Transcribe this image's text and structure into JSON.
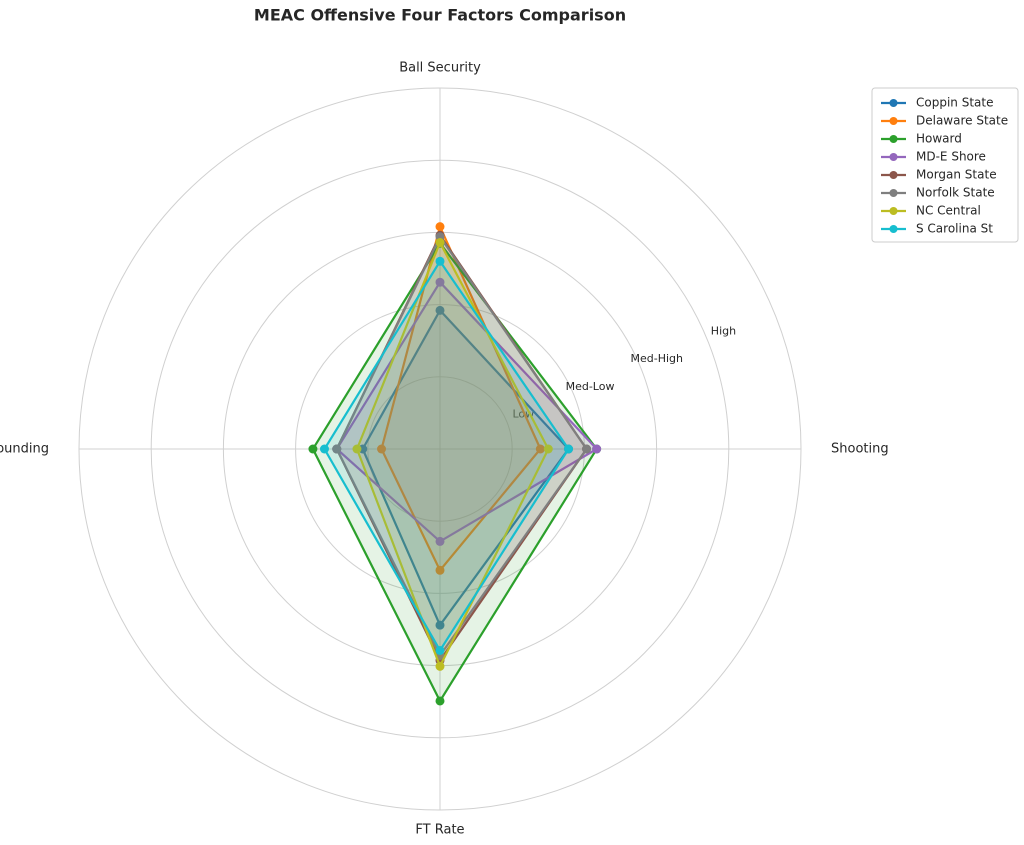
{
  "chart_data": {
    "type": "radar",
    "title": "MEAC Offensive Four Factors Comparison",
    "categories": [
      "Shooting",
      "Ball Security",
      "Off Rebounding",
      "FT Rate"
    ],
    "ylim": [
      0,
      5
    ],
    "yticks": [
      {
        "value": 1,
        "label": "Low"
      },
      {
        "value": 2,
        "label": "Med-Low"
      },
      {
        "value": 3,
        "label": "Med-High"
      },
      {
        "value": 4,
        "label": "High"
      }
    ],
    "grid": true,
    "legend": "upper right",
    "series": [
      {
        "name": "Coppin State",
        "color": "#1f77b4",
        "values": [
          1.78,
          1.92,
          1.07,
          2.44
        ]
      },
      {
        "name": "Delaware State",
        "color": "#ff7f0e",
        "values": [
          1.39,
          3.08,
          0.81,
          1.68
        ]
      },
      {
        "name": "Howard",
        "color": "#2ca02c",
        "values": [
          2.17,
          2.85,
          1.76,
          3.49
        ]
      },
      {
        "name": "MD-E Shore",
        "color": "#9467bd",
        "values": [
          2.17,
          2.31,
          1.43,
          1.28
        ]
      },
      {
        "name": "Morgan State",
        "color": "#8c564b",
        "values": [
          2.03,
          2.96,
          1.43,
          2.93
        ]
      },
      {
        "name": "Norfolk State",
        "color": "#7f7f7f",
        "values": [
          2.03,
          2.94,
          1.43,
          2.86
        ]
      },
      {
        "name": "NC Central",
        "color": "#bcbd22",
        "values": [
          1.5,
          2.86,
          1.15,
          3.01
        ]
      },
      {
        "name": "S Carolina St",
        "color": "#17becf",
        "values": [
          1.78,
          2.6,
          1.6,
          2.79
        ]
      }
    ]
  }
}
